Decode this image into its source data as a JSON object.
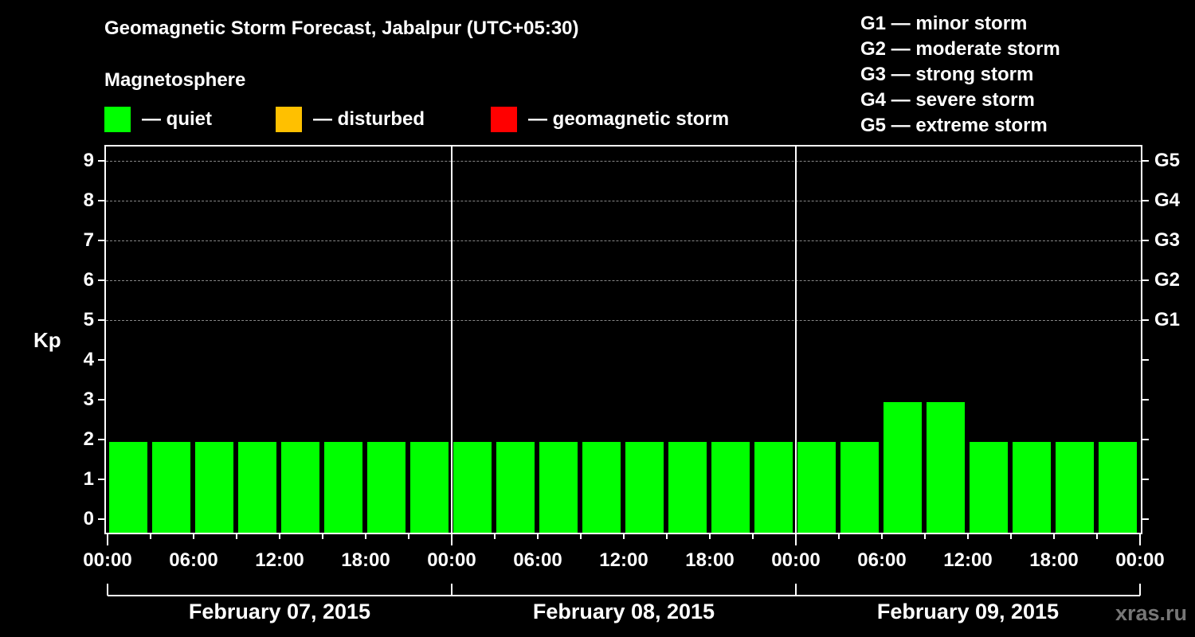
{
  "header": {
    "title": "Geomagnetic Storm Forecast, Jabalpur (UTC+05:30)",
    "subtitle": "Magnetosphere"
  },
  "legend": {
    "items": [
      {
        "label": "— quiet",
        "color": "#00ff00"
      },
      {
        "label": "— disturbed",
        "color": "#ffc000"
      },
      {
        "label": "— geomagnetic storm",
        "color": "#ff0000"
      }
    ]
  },
  "g_scale_legend": [
    "G1 — minor storm",
    "G2 — moderate storm",
    "G3 — strong storm",
    "G4 — severe storm",
    "G5 — extreme storm"
  ],
  "axes": {
    "ylabel": "Kp",
    "yticks": [
      "0",
      "1",
      "2",
      "3",
      "4",
      "5",
      "6",
      "7",
      "8",
      "9"
    ],
    "right_ticks": [
      {
        "kp": 5,
        "label": "G1"
      },
      {
        "kp": 6,
        "label": "G2"
      },
      {
        "kp": 7,
        "label": "G3"
      },
      {
        "kp": 8,
        "label": "G4"
      },
      {
        "kp": 9,
        "label": "G5"
      }
    ],
    "xticks": [
      "00:00",
      "06:00",
      "12:00",
      "18:00",
      "00:00",
      "06:00",
      "12:00",
      "18:00",
      "00:00",
      "06:00",
      "12:00",
      "18:00",
      "00:00"
    ],
    "dates": [
      "February 07, 2015",
      "February 08, 2015",
      "February 09, 2015"
    ]
  },
  "watermark": "xras.ru",
  "chart_data": {
    "type": "bar",
    "title": "Geomagnetic Storm Forecast, Jabalpur (UTC+05:30)",
    "subtitle": "Magnetosphere",
    "xlabel": "",
    "ylabel": "Kp",
    "ylim": [
      0,
      9
    ],
    "grid": "horizontal dashed at Kp 5-9",
    "legend_position": "top",
    "bin_hours": 3,
    "x_start_local": "February 07, 2015 01:30",
    "categories": [
      "01:30",
      "04:30",
      "07:30",
      "10:30",
      "13:30",
      "16:30",
      "19:30",
      "22:30",
      "01:30",
      "04:30",
      "07:30",
      "10:30",
      "13:30",
      "16:30",
      "19:30",
      "22:30",
      "01:30",
      "04:30",
      "07:30",
      "10:30",
      "13:30",
      "16:30",
      "19:30",
      "22:30"
    ],
    "series": [
      {
        "name": "Kp",
        "values": [
          2,
          2,
          2,
          2,
          2,
          2,
          2,
          2,
          2,
          2,
          2,
          2,
          2,
          2,
          2,
          2,
          2,
          2,
          3,
          3,
          2,
          2,
          2,
          2
        ]
      }
    ],
    "bar_colors": "all quiet (#00ff00)",
    "days": [
      "February 07, 2015",
      "February 08, 2015",
      "February 09, 2015"
    ]
  }
}
